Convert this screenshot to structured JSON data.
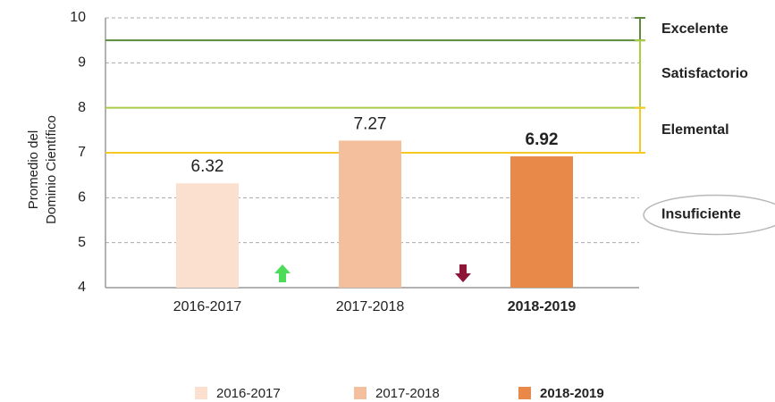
{
  "chart_data": {
    "type": "bar",
    "ylabel": [
      "Promedio del",
      "Dominio Científico"
    ],
    "categories": [
      "2016-2017",
      "2017-2018",
      "2018-2019"
    ],
    "values": [
      6.32,
      7.27,
      6.92
    ],
    "colors": [
      "#fbe0d0",
      "#f3bf9c",
      "#e8894a"
    ],
    "ylim": [
      4,
      10
    ],
    "yticks": [
      4,
      5,
      6,
      7,
      8,
      9,
      10
    ],
    "grid": true,
    "levels": [
      {
        "label": "Excelente",
        "from": 9.5,
        "to": 10,
        "color": "#5e8c3c"
      },
      {
        "label": "Satisfactorio",
        "from": 8,
        "to": 9.5,
        "color": "#a9cb45"
      },
      {
        "label": "Elemental",
        "from": 7,
        "to": 8,
        "color": "#f6c824"
      },
      {
        "label": "Insuficiente",
        "from": 4,
        "to": 7,
        "color": "#b8b8b8"
      }
    ],
    "legend": "bottom"
  }
}
